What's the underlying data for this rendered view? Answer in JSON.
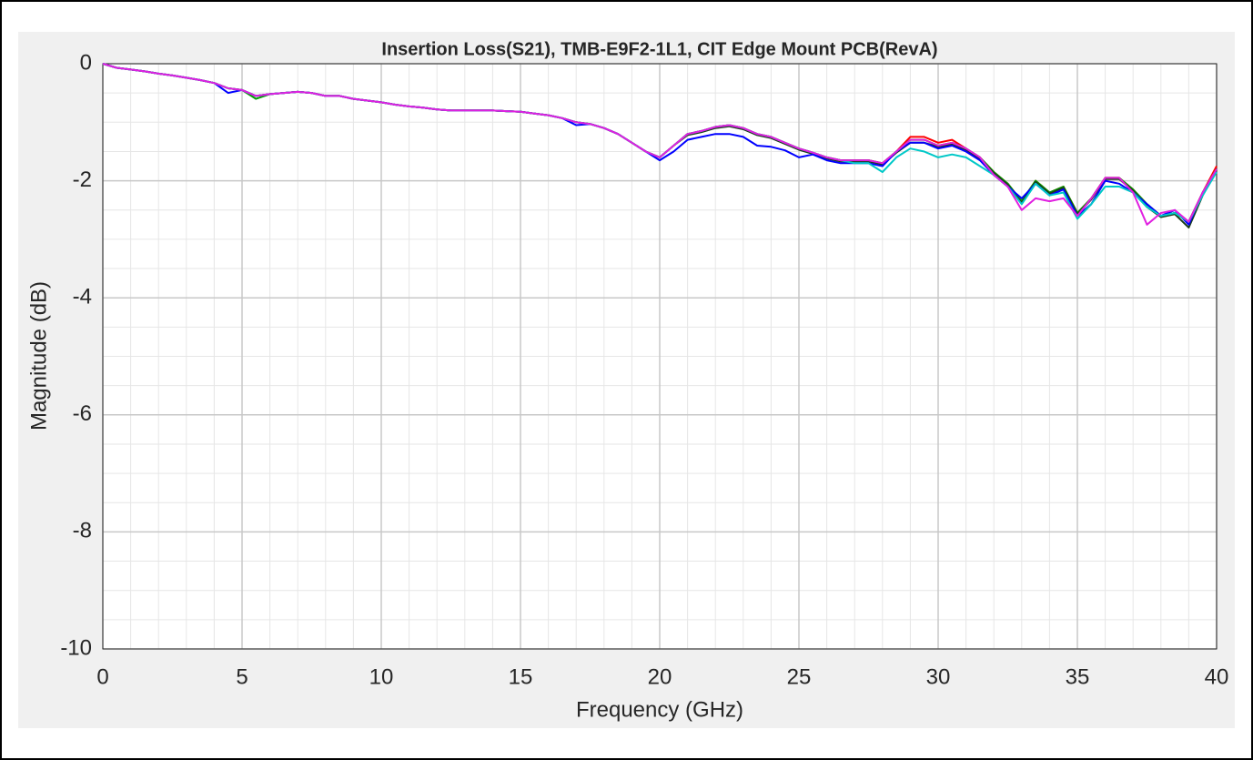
{
  "chart_data": {
    "type": "line",
    "title": "Insertion Loss(S21), TMB-E9F2-1L1, CIT Edge Mount PCB(RevA)",
    "xlabel": "Frequency (GHz)",
    "ylabel": "Magnitude (dB)",
    "x": [
      0,
      0.5,
      1,
      1.5,
      2,
      2.5,
      3,
      3.5,
      4,
      4.5,
      5,
      5.5,
      6,
      6.5,
      7,
      7.5,
      8,
      8.5,
      9,
      9.5,
      10,
      10.5,
      11,
      11.5,
      12,
      12.5,
      13,
      13.5,
      14,
      14.5,
      15,
      15.5,
      16,
      16.5,
      17,
      17.5,
      18,
      18.5,
      19,
      19.5,
      20,
      20.5,
      21,
      21.5,
      22,
      22.5,
      23,
      23.5,
      24,
      24.5,
      25,
      25.5,
      26,
      26.5,
      27,
      27.5,
      28,
      28.5,
      29,
      29.5,
      30,
      30.5,
      31,
      31.5,
      32,
      32.5,
      33,
      33.5,
      34,
      34.5,
      35,
      35.5,
      36,
      36.5,
      37,
      37.5,
      38,
      38.5,
      39,
      39.5,
      40
    ],
    "series": [
      {
        "color": "#ff0000",
        "values": [
          0,
          -0.07,
          -0.1,
          -0.13,
          -0.17,
          -0.2,
          -0.24,
          -0.28,
          -0.33,
          -0.42,
          -0.45,
          -0.55,
          -0.52,
          -0.5,
          -0.48,
          -0.5,
          -0.55,
          -0.55,
          -0.6,
          -0.63,
          -0.66,
          -0.7,
          -0.73,
          -0.75,
          -0.78,
          -0.8,
          -0.8,
          -0.8,
          -0.8,
          -0.81,
          -0.82,
          -0.85,
          -0.88,
          -0.93,
          -1.0,
          -1.03,
          -1.1,
          -1.2,
          -1.35,
          -1.5,
          -1.6,
          -1.4,
          -1.2,
          -1.15,
          -1.08,
          -1.05,
          -1.1,
          -1.2,
          -1.25,
          -1.35,
          -1.45,
          -1.52,
          -1.6,
          -1.65,
          -1.65,
          -1.65,
          -1.7,
          -1.5,
          -1.25,
          -1.25,
          -1.35,
          -1.3,
          -1.45,
          -1.6,
          -1.85,
          -2.05,
          -2.35,
          -2.0,
          -2.2,
          -2.1,
          -2.55,
          -2.3,
          -1.95,
          -1.95,
          -2.15,
          -2.4,
          -2.6,
          -2.55,
          -2.7,
          -2.2,
          -1.75
        ]
      },
      {
        "color": "#00a000",
        "values": [
          0,
          -0.07,
          -0.1,
          -0.13,
          -0.17,
          -0.2,
          -0.24,
          -0.28,
          -0.33,
          -0.42,
          -0.45,
          -0.6,
          -0.52,
          -0.5,
          -0.48,
          -0.5,
          -0.55,
          -0.55,
          -0.6,
          -0.63,
          -0.66,
          -0.7,
          -0.73,
          -0.75,
          -0.78,
          -0.8,
          -0.8,
          -0.8,
          -0.8,
          -0.81,
          -0.82,
          -0.85,
          -0.88,
          -0.93,
          -1.0,
          -1.03,
          -1.1,
          -1.2,
          -1.35,
          -1.5,
          -1.6,
          -1.4,
          -1.2,
          -1.15,
          -1.08,
          -1.05,
          -1.1,
          -1.2,
          -1.25,
          -1.35,
          -1.45,
          -1.52,
          -1.6,
          -1.65,
          -1.65,
          -1.65,
          -1.7,
          -1.5,
          -1.3,
          -1.3,
          -1.4,
          -1.35,
          -1.45,
          -1.6,
          -1.85,
          -2.05,
          -2.35,
          -2.0,
          -2.2,
          -2.1,
          -2.55,
          -2.3,
          -1.95,
          -1.95,
          -2.15,
          -2.4,
          -2.6,
          -2.55,
          -2.7,
          -2.2,
          -1.8
        ]
      },
      {
        "color": "#1a3d1a",
        "values": [
          0,
          -0.07,
          -0.1,
          -0.13,
          -0.17,
          -0.2,
          -0.24,
          -0.28,
          -0.33,
          -0.42,
          -0.45,
          -0.55,
          -0.52,
          -0.5,
          -0.48,
          -0.5,
          -0.55,
          -0.55,
          -0.6,
          -0.63,
          -0.66,
          -0.7,
          -0.73,
          -0.75,
          -0.78,
          -0.8,
          -0.8,
          -0.8,
          -0.8,
          -0.81,
          -0.82,
          -0.85,
          -0.88,
          -0.93,
          -1.0,
          -1.03,
          -1.1,
          -1.2,
          -1.35,
          -1.5,
          -1.6,
          -1.4,
          -1.22,
          -1.17,
          -1.1,
          -1.07,
          -1.12,
          -1.22,
          -1.27,
          -1.37,
          -1.47,
          -1.54,
          -1.62,
          -1.67,
          -1.67,
          -1.67,
          -1.72,
          -1.52,
          -1.35,
          -1.35,
          -1.42,
          -1.38,
          -1.47,
          -1.62,
          -1.87,
          -2.07,
          -2.38,
          -2.02,
          -2.22,
          -2.12,
          -2.57,
          -2.32,
          -1.97,
          -1.97,
          -2.17,
          -2.45,
          -2.62,
          -2.57,
          -2.8,
          -2.25,
          -1.82
        ]
      },
      {
        "color": "#0000ff",
        "values": [
          0,
          -0.07,
          -0.1,
          -0.13,
          -0.17,
          -0.2,
          -0.24,
          -0.28,
          -0.33,
          -0.5,
          -0.45,
          -0.55,
          -0.52,
          -0.5,
          -0.48,
          -0.5,
          -0.55,
          -0.55,
          -0.6,
          -0.63,
          -0.66,
          -0.7,
          -0.73,
          -0.75,
          -0.78,
          -0.8,
          -0.8,
          -0.8,
          -0.8,
          -0.81,
          -0.82,
          -0.85,
          -0.88,
          -0.93,
          -1.05,
          -1.03,
          -1.1,
          -1.2,
          -1.35,
          -1.5,
          -1.65,
          -1.5,
          -1.3,
          -1.25,
          -1.2,
          -1.2,
          -1.25,
          -1.4,
          -1.42,
          -1.48,
          -1.6,
          -1.55,
          -1.65,
          -1.7,
          -1.7,
          -1.7,
          -1.75,
          -1.5,
          -1.35,
          -1.35,
          -1.45,
          -1.4,
          -1.5,
          -1.65,
          -1.9,
          -2.1,
          -2.3,
          -2.05,
          -2.25,
          -2.15,
          -2.6,
          -2.4,
          -2.0,
          -2.05,
          -2.2,
          -2.4,
          -2.6,
          -2.5,
          -2.75,
          -2.2,
          -1.85
        ]
      },
      {
        "color": "#00c8c8",
        "values": [
          0,
          -0.07,
          -0.1,
          -0.13,
          -0.17,
          -0.2,
          -0.24,
          -0.28,
          -0.33,
          -0.42,
          -0.45,
          -0.55,
          -0.52,
          -0.5,
          -0.48,
          -0.5,
          -0.55,
          -0.55,
          -0.6,
          -0.63,
          -0.66,
          -0.7,
          -0.73,
          -0.75,
          -0.78,
          -0.8,
          -0.8,
          -0.8,
          -0.8,
          -0.81,
          -0.82,
          -0.85,
          -0.88,
          -0.93,
          -1.0,
          -1.03,
          -1.1,
          -1.2,
          -1.35,
          -1.5,
          -1.6,
          -1.4,
          -1.2,
          -1.15,
          -1.08,
          -1.05,
          -1.1,
          -1.2,
          -1.25,
          -1.35,
          -1.45,
          -1.52,
          -1.6,
          -1.65,
          -1.7,
          -1.7,
          -1.85,
          -1.6,
          -1.45,
          -1.5,
          -1.6,
          -1.55,
          -1.6,
          -1.75,
          -1.9,
          -2.1,
          -2.4,
          -2.05,
          -2.25,
          -2.2,
          -2.65,
          -2.4,
          -2.1,
          -2.1,
          -2.2,
          -2.45,
          -2.6,
          -2.55,
          -2.7,
          -2.25,
          -1.85
        ]
      },
      {
        "color": "#e020e0",
        "values": [
          0,
          -0.07,
          -0.1,
          -0.13,
          -0.17,
          -0.2,
          -0.24,
          -0.28,
          -0.33,
          -0.42,
          -0.45,
          -0.55,
          -0.52,
          -0.5,
          -0.48,
          -0.5,
          -0.55,
          -0.55,
          -0.6,
          -0.63,
          -0.66,
          -0.7,
          -0.73,
          -0.75,
          -0.78,
          -0.8,
          -0.8,
          -0.8,
          -0.8,
          -0.81,
          -0.82,
          -0.85,
          -0.88,
          -0.93,
          -1.0,
          -1.03,
          -1.1,
          -1.2,
          -1.35,
          -1.5,
          -1.6,
          -1.4,
          -1.2,
          -1.15,
          -1.08,
          -1.05,
          -1.1,
          -1.2,
          -1.25,
          -1.35,
          -1.45,
          -1.52,
          -1.6,
          -1.65,
          -1.65,
          -1.65,
          -1.7,
          -1.5,
          -1.3,
          -1.3,
          -1.4,
          -1.35,
          -1.45,
          -1.6,
          -1.9,
          -2.1,
          -2.5,
          -2.3,
          -2.35,
          -2.3,
          -2.6,
          -2.3,
          -1.95,
          -1.95,
          -2.2,
          -2.75,
          -2.55,
          -2.5,
          -2.7,
          -2.2,
          -1.8
        ]
      }
    ],
    "xlim": [
      0,
      40
    ],
    "xticks": [
      0,
      5,
      10,
      15,
      20,
      25,
      30,
      35,
      40
    ],
    "ylim": [
      -10,
      0
    ],
    "yticks": [
      -10,
      -8,
      -6,
      -4,
      -2,
      0
    ],
    "grid": true,
    "minor_grid": true
  }
}
